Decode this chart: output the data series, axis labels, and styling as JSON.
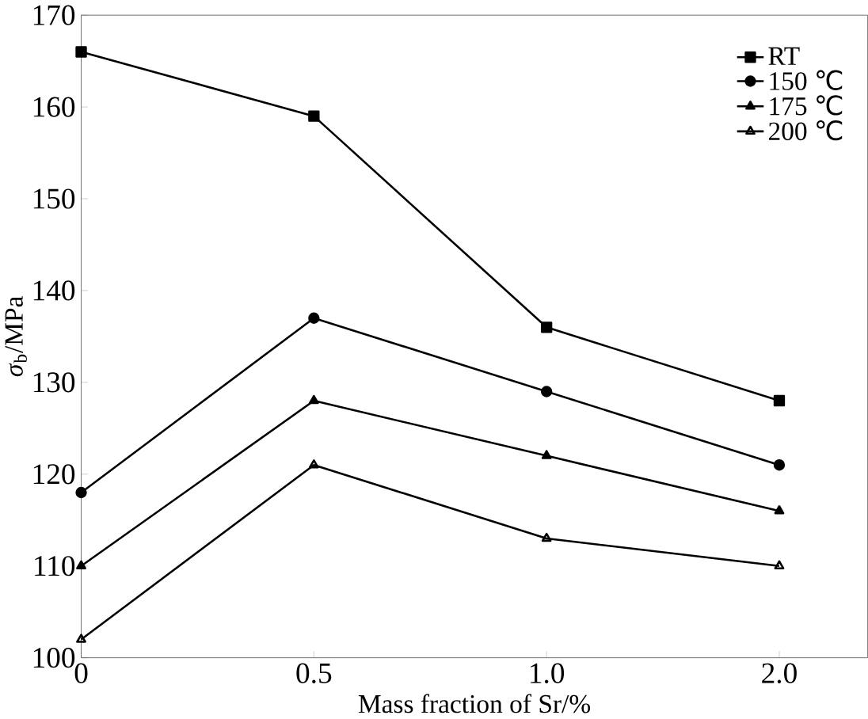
{
  "chart_data": {
    "type": "line",
    "xlabel": "Mass fraction of Sr/%",
    "ylabel": "*σ*$_{b}$/MPa",
    "categories": [
      "0",
      "0.5",
      "1.0",
      "2.0"
    ],
    "ylim": [
      100,
      170
    ],
    "yticks": [
      100,
      110,
      120,
      130,
      140,
      150,
      160,
      170
    ],
    "legend": "top right",
    "line_style": "solid",
    "series": [
      {
        "name": "RT",
        "color": "#000000",
        "marker": "square",
        "values": [
          166,
          159,
          136,
          128
        ]
      },
      {
        "name": "150 ℃",
        "color": "#000000",
        "marker": "circle",
        "values": [
          118,
          137,
          129,
          121
        ]
      },
      {
        "name": "175 ℃",
        "color": "#000000",
        "marker": "triangle",
        "values": [
          110,
          128,
          122,
          116
        ]
      },
      {
        "name": "200 ℃",
        "color": "#000000",
        "marker": "triangle-open",
        "values": [
          102,
          121,
          113,
          110
        ]
      }
    ]
  }
}
